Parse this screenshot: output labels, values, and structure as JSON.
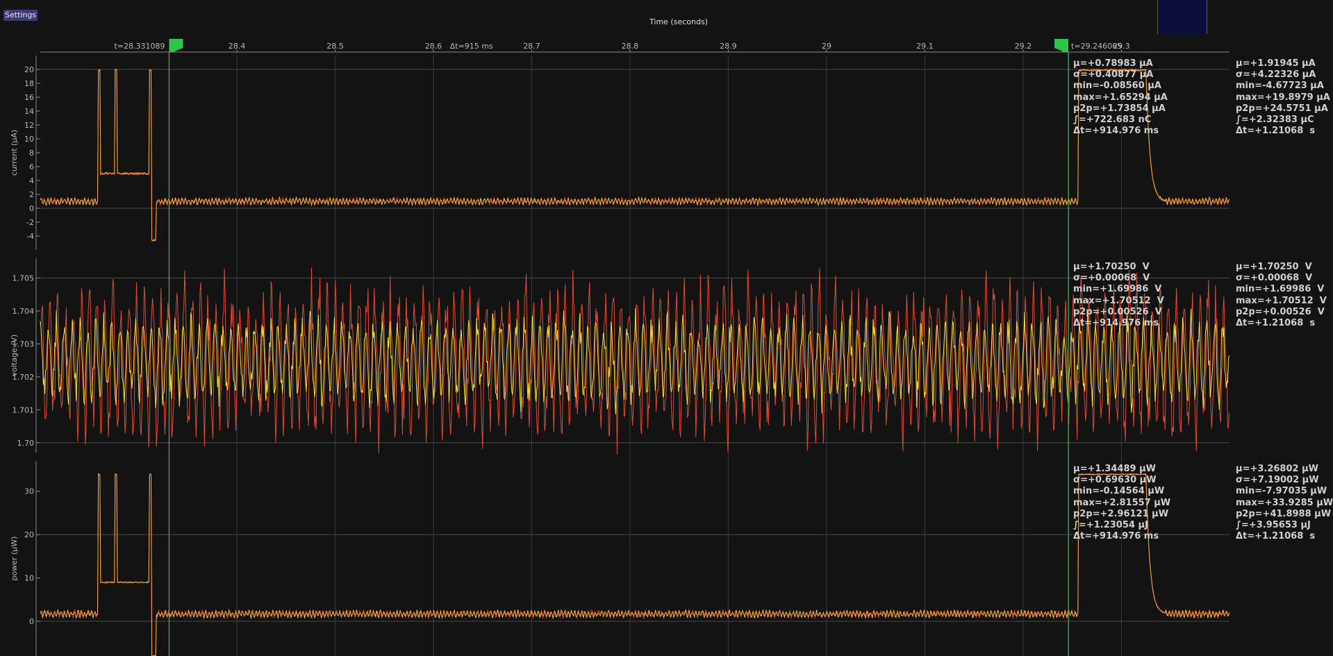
{
  "app": {
    "settings_label": "Settings"
  },
  "time_axis": {
    "title": "Time (seconds)",
    "ticks": [
      "28.4",
      "28.5",
      "28.6",
      "28.7",
      "28.8",
      "28.9",
      "29",
      "29.1",
      "29.2",
      "29.3"
    ],
    "tick_values": [
      28.4,
      28.5,
      28.6,
      28.7,
      28.8,
      28.9,
      29.0,
      29.1,
      29.2,
      29.3
    ],
    "range": [
      28.2,
      29.41
    ]
  },
  "markers": {
    "left_time": 28.331089,
    "right_time": 29.246065,
    "left_label": "t=28.331089",
    "right_label": "t=29.246065",
    "delta_label": "Δt=915 ms",
    "color": "#2fc34a"
  },
  "chart_data": [
    {
      "type": "line",
      "ylabel": "current (µA)",
      "ylim": [
        -6,
        22
      ],
      "yticks": [
        "20",
        "18",
        "16",
        "14",
        "12",
        "10",
        "8",
        "6",
        "4",
        "2",
        "0",
        "-2",
        "-4"
      ],
      "ytick_values": [
        20,
        18,
        16,
        14,
        12,
        10,
        8,
        6,
        4,
        2,
        0,
        -2,
        -4
      ],
      "grid_values": [
        20,
        0
      ],
      "series": [
        {
          "color": "#e04a30"
        },
        {
          "color": "#f0b040"
        }
      ],
      "events": [
        {
          "t0": 28.259,
          "t1": 28.312,
          "level": 5
        },
        {
          "t0": 28.259,
          "t1": 28.261,
          "level": 19.9
        },
        {
          "t0": 28.276,
          "t1": 28.278,
          "level": 19.9
        },
        {
          "t0": 28.311,
          "t1": 28.313,
          "level": 19.9
        },
        {
          "t0": 28.311,
          "t1": 28.318,
          "level": -4.6
        },
        {
          "t0": 29.256,
          "t1": 29.325,
          "level": 19.9
        }
      ],
      "baseline": 1.0,
      "stats_marker": [
        "µ=+0.78983 µA",
        "σ=+0.40877 µA",
        "min=-0.08560 µA",
        "max=+1.65294 µA",
        "p2p=+1.73854 µA",
        "∫=+722.683 nC",
        "Δt=+914.976 ms"
      ],
      "stats_full": [
        "µ=+1.91945 µA",
        "σ=+4.22326 µA",
        "min=-4.67723 µA",
        "max=+19.8979 µA",
        "p2p=+24.5751 µA",
        "∫=+2.32383 µC",
        "Δt=+1.21068  s"
      ]
    },
    {
      "type": "line",
      "ylabel": "voltage (V)",
      "ylim": [
        1.6997,
        1.7056
      ],
      "yticks": [
        "1.705",
        "1.704",
        "1.703",
        "1.702",
        "1.701",
        "1.70"
      ],
      "ytick_values": [
        1.705,
        1.704,
        1.703,
        1.702,
        1.701,
        1.7
      ],
      "grid_values": [
        1.705,
        1.7
      ],
      "series": [
        {
          "color": "#e04a30"
        },
        {
          "color": "#f0e040"
        }
      ],
      "center": 1.7025,
      "stats_marker": [
        "µ=+1.70250  V",
        "σ=+0.00068  V",
        "min=+1.69986  V",
        "max=+1.70512  V",
        "p2p=+0.00526  V",
        "Δt=+914.976 ms"
      ],
      "stats_full": [
        "µ=+1.70250  V",
        "σ=+0.00068  V",
        "min=+1.69986  V",
        "max=+1.70512  V",
        "p2p=+0.00526  V",
        "Δt=+1.21068  s"
      ]
    },
    {
      "type": "line",
      "ylabel": "power (µW)",
      "ylim": [
        -8,
        37
      ],
      "yticks": [
        "30",
        "20",
        "10",
        "0"
      ],
      "ytick_values": [
        30,
        20,
        10,
        0
      ],
      "grid_values": [
        20,
        0
      ],
      "series": [
        {
          "color": "#e04a30"
        },
        {
          "color": "#f0b040"
        }
      ],
      "events": [
        {
          "t0": 28.259,
          "t1": 28.312,
          "level": 9
        },
        {
          "t0": 28.259,
          "t1": 28.261,
          "level": 33.9
        },
        {
          "t0": 28.276,
          "t1": 28.278,
          "level": 33.9
        },
        {
          "t0": 28.311,
          "t1": 28.313,
          "level": 33.9
        },
        {
          "t0": 28.311,
          "t1": 28.318,
          "level": -7.9
        },
        {
          "t0": 29.256,
          "t1": 29.325,
          "level": 33.9
        }
      ],
      "baseline": 1.7,
      "stats_marker": [
        "µ=+1.34489 µW",
        "σ=+0.69630 µW",
        "min=-0.14564 µW",
        "max=+2.81557 µW",
        "p2p=+2.96121 µW",
        "∫=+1.23054 µJ",
        "Δt=+914.976 ms"
      ],
      "stats_full": [
        "µ=+3.26802 µW",
        "σ=+7.19002 µW",
        "min=-7.97035 µW",
        "max=+33.9285 µW",
        "p2p=+41.8988 µW",
        "∫=+3.95653 µJ",
        "Δt=+1.21068  s"
      ]
    }
  ]
}
